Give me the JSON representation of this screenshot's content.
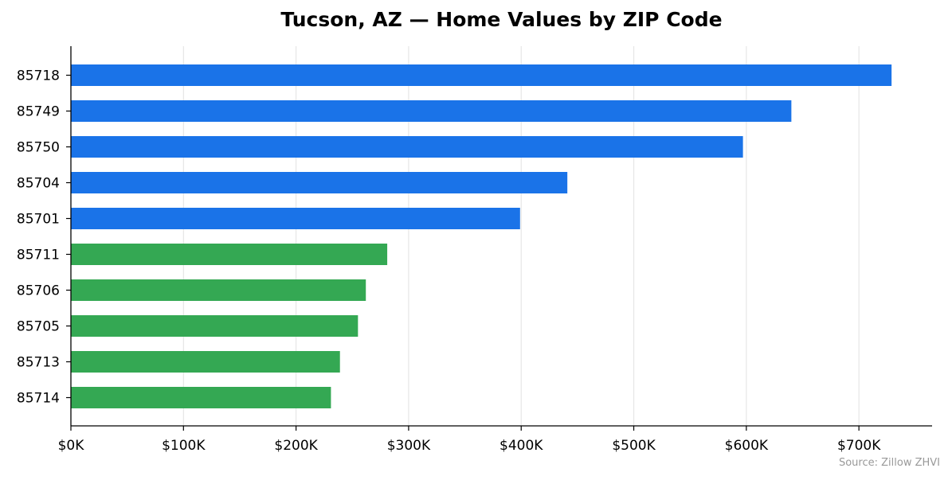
{
  "chart_data": {
    "type": "bar",
    "orientation": "horizontal",
    "title": "Tucson, AZ — Home Values by ZIP Code",
    "xlabel": "",
    "ylabel": "",
    "categories": [
      "85718",
      "85749",
      "85750",
      "85704",
      "85701",
      "85711",
      "85706",
      "85705",
      "85713",
      "85714"
    ],
    "values": [
      729000,
      640000,
      597000,
      441000,
      399000,
      281000,
      262000,
      255000,
      239000,
      231000
    ],
    "bar_colors": [
      "#1a73e8",
      "#1a73e8",
      "#1a73e8",
      "#1a73e8",
      "#1a73e8",
      "#34a853",
      "#34a853",
      "#34a853",
      "#34a853",
      "#34a853"
    ],
    "xlim": [
      0,
      765000
    ],
    "xticks": [
      0,
      100000,
      200000,
      300000,
      400000,
      500000,
      600000,
      700000
    ],
    "xtick_labels": [
      "$0K",
      "$100K",
      "$200K",
      "$300K",
      "$400K",
      "$500K",
      "$600K",
      "$700K"
    ],
    "grid": "vertical",
    "source": "Source: Zillow ZHVI"
  }
}
